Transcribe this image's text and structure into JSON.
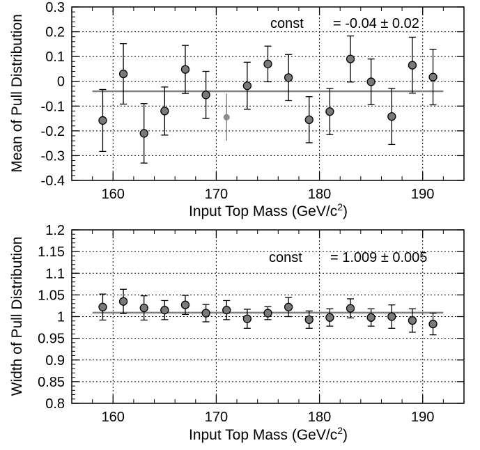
{
  "chart_data": [
    {
      "type": "scatter",
      "name": "mean",
      "xlabel": "Input Top Mass (GeV/c",
      "xlabel_sup": "2",
      "xlabel_end": ")",
      "ylabel": "Mean of Pull Distribution",
      "xlim": [
        156,
        194
      ],
      "ylim": [
        -0.4,
        0.3
      ],
      "xticks": [
        160,
        170,
        180,
        190
      ],
      "yticks": [
        0.3,
        0.2,
        0.1,
        0,
        -0.1,
        -0.2,
        -0.3,
        -0.4
      ],
      "ytick_labels": [
        "0.3",
        "0.2",
        "0.1",
        "0",
        "-0.1",
        "-0.2",
        "-0.3",
        "-0.4"
      ],
      "xtick_labels": [
        "160",
        "170",
        "180",
        "190"
      ],
      "grid": true,
      "fit": {
        "label": "const",
        "value_text": "= -0.04 ± 0.02",
        "value": -0.04
      },
      "series": [
        {
          "x": [
            159,
            161,
            163,
            165,
            167,
            169,
            171,
            173,
            175,
            177,
            179,
            181,
            183,
            185,
            187,
            189,
            191
          ],
          "y": [
            -0.158,
            0.03,
            -0.21,
            -0.12,
            0.048,
            -0.055,
            -0.145,
            -0.018,
            0.07,
            0.015,
            -0.155,
            -0.122,
            0.09,
            -0.002,
            -0.142,
            0.065,
            0.017
          ],
          "err": [
            0.125,
            0.122,
            0.12,
            0.097,
            0.097,
            0.095,
            0.095,
            0.095,
            0.072,
            0.093,
            0.093,
            0.093,
            0.093,
            0.092,
            0.113,
            0.113,
            0.112
          ],
          "highlight_index": 6
        }
      ]
    },
    {
      "type": "scatter",
      "name": "width",
      "xlabel": "Input Top Mass (GeV/c",
      "xlabel_sup": "2",
      "xlabel_end": ")",
      "ylabel": "Width of Pull Distribution",
      "xlim": [
        156,
        194
      ],
      "ylim": [
        0.8,
        1.2
      ],
      "xticks": [
        160,
        170,
        180,
        190
      ],
      "yticks": [
        1.2,
        1.15,
        1.1,
        1.05,
        1,
        0.95,
        0.9,
        0.85,
        0.8
      ],
      "ytick_labels": [
        "1.2",
        "1.15",
        "1.1",
        "1.05",
        "1",
        "0.95",
        "0.9",
        "0.85",
        "0.8"
      ],
      "xtick_labels": [
        "160",
        "170",
        "180",
        "190"
      ],
      "grid": true,
      "fit": {
        "label": "const",
        "value_text": "= 1.009 ± 0.005",
        "value": 1.009
      },
      "series": [
        {
          "x": [
            159,
            161,
            163,
            165,
            167,
            169,
            171,
            173,
            175,
            177,
            179,
            181,
            183,
            185,
            187,
            189,
            191
          ],
          "y": [
            1.022,
            1.035,
            1.02,
            1.015,
            1.027,
            1.008,
            1.015,
            0.995,
            1.008,
            1.022,
            0.993,
            0.998,
            1.019,
            0.998,
            1.0,
            0.991,
            0.983
          ],
          "err": [
            0.03,
            0.028,
            0.028,
            0.022,
            0.022,
            0.02,
            0.022,
            0.022,
            0.015,
            0.022,
            0.02,
            0.02,
            0.022,
            0.02,
            0.027,
            0.027,
            0.025
          ],
          "highlight_index": -1
        }
      ]
    }
  ],
  "colors": {
    "marker_fill": "#7a7a7a",
    "marker_highlight": "#8c8c8c",
    "fit_line": "#808080",
    "grid": "#000000"
  }
}
